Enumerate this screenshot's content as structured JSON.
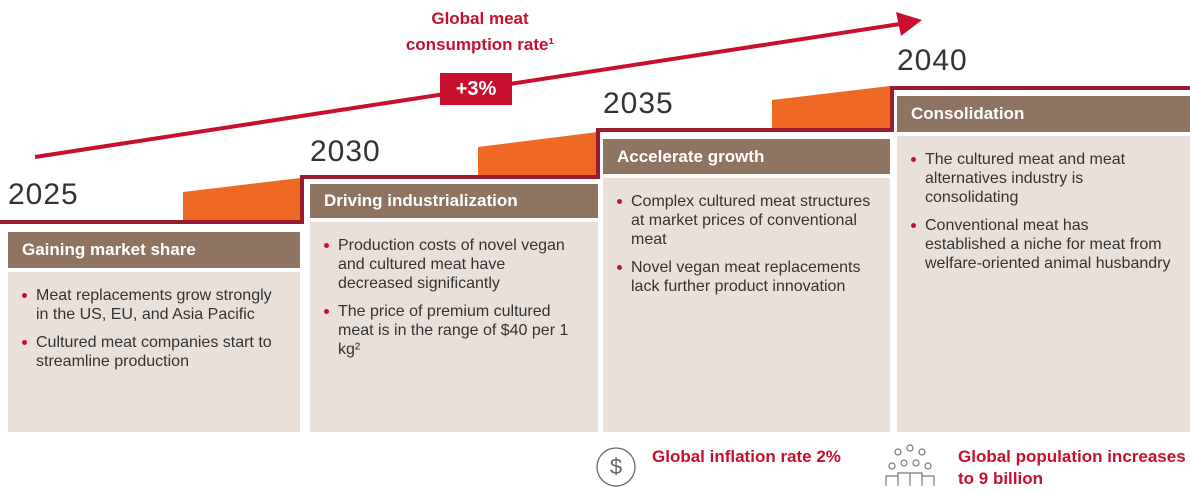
{
  "header": {
    "title": "Global meat consumption rate¹",
    "badge": "+3%"
  },
  "stages": [
    {
      "year": "2025",
      "title": "Gaining market share",
      "bullets": [
        "Meat replacements grow strongly in the US, EU, and Asia Pacific",
        "Cultured meat companies start to streamline production"
      ]
    },
    {
      "year": "2030",
      "title": "Driving industrialization",
      "bullets": [
        "Production costs of novel vegan and cultured meat have decreased significantly",
        "The price of premium cultured meat is in the range of $40 per 1 kg²"
      ]
    },
    {
      "year": "2035",
      "title": "Accelerate growth",
      "bullets": [
        "Complex cultured meat structures at market prices of conventional meat",
        "Novel vegan meat replacements lack further product innovation"
      ]
    },
    {
      "year": "2040",
      "title": "Consolidation",
      "bullets": [
        "The cultured meat and meat alternatives industry is consolidating",
        "Conventional meat has established a niche for meat from welfare-oriented animal husbandry"
      ]
    }
  ],
  "footnotes": [
    {
      "text": "Global inflation rate 2%"
    },
    {
      "text": "Global population increases to 9 billion"
    }
  ]
}
